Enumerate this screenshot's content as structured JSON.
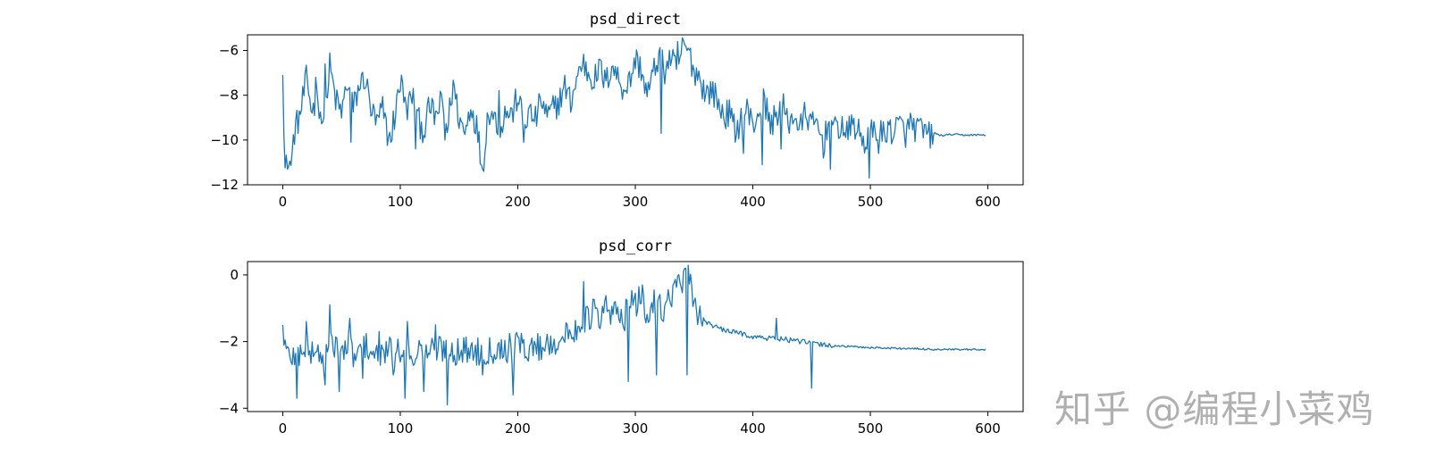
{
  "chart_data": [
    {
      "type": "line",
      "title": "psd_direct",
      "xlim": [
        -30,
        630
      ],
      "ylim": [
        -12,
        -5.3
      ],
      "xticks": [
        0,
        100,
        200,
        300,
        400,
        500,
        600
      ],
      "yticks": [
        -12,
        -10,
        -8,
        -6
      ],
      "grid": false,
      "color": "#1f77b4",
      "anchors": [
        [
          0,
          -7.1
        ],
        [
          2,
          -11.3
        ],
        [
          4,
          -10.4
        ],
        [
          7,
          -11.2
        ],
        [
          10,
          -9.6
        ],
        [
          15,
          -8.8
        ],
        [
          20,
          -7.3
        ],
        [
          25,
          -8.7
        ],
        [
          30,
          -8.1
        ],
        [
          35,
          -9.6
        ],
        [
          40,
          -6.7
        ],
        [
          45,
          -8.2
        ],
        [
          50,
          -8.8
        ],
        [
          55,
          -7.4
        ],
        [
          60,
          -8.6
        ],
        [
          65,
          -7.6
        ],
        [
          70,
          -7.2
        ],
        [
          75,
          -8.6
        ],
        [
          80,
          -9.3
        ],
        [
          85,
          -8.6
        ],
        [
          90,
          -10.0
        ],
        [
          95,
          -9.0
        ],
        [
          100,
          -7.4
        ],
        [
          105,
          -8.7
        ],
        [
          110,
          -8.0
        ],
        [
          115,
          -9.1
        ],
        [
          120,
          -9.6
        ],
        [
          125,
          -8.5
        ],
        [
          130,
          -9.0
        ],
        [
          135,
          -8.3
        ],
        [
          140,
          -9.5
        ],
        [
          145,
          -7.5
        ],
        [
          150,
          -9.0
        ],
        [
          155,
          -9.7
        ],
        [
          160,
          -8.4
        ],
        [
          165,
          -9.4
        ],
        [
          170,
          -11.3
        ],
        [
          175,
          -8.6
        ],
        [
          180,
          -9.0
        ],
        [
          185,
          -9.4
        ],
        [
          190,
          -8.7
        ],
        [
          195,
          -8.9
        ],
        [
          200,
          -8.0
        ],
        [
          205,
          -9.3
        ],
        [
          210,
          -8.8
        ],
        [
          215,
          -9.1
        ],
        [
          220,
          -8.2
        ],
        [
          225,
          -9.0
        ],
        [
          230,
          -8.6
        ],
        [
          235,
          -8.3
        ],
        [
          240,
          -7.6
        ],
        [
          245,
          -8.3
        ],
        [
          250,
          -7.3
        ],
        [
          255,
          -6.5
        ],
        [
          260,
          -7.0
        ],
        [
          265,
          -7.3
        ],
        [
          270,
          -6.8
        ],
        [
          275,
          -7.5
        ],
        [
          280,
          -6.6
        ],
        [
          285,
          -7.2
        ],
        [
          290,
          -7.7
        ],
        [
          295,
          -7.4
        ],
        [
          300,
          -6.4
        ],
        [
          305,
          -6.8
        ],
        [
          310,
          -8.0
        ],
        [
          315,
          -7.1
        ],
        [
          320,
          -6.2
        ],
        [
          325,
          -6.9
        ],
        [
          330,
          -6.3
        ],
        [
          335,
          -6.9
        ],
        [
          340,
          -5.9
        ],
        [
          345,
          -6.0
        ],
        [
          350,
          -6.9
        ],
        [
          355,
          -7.2
        ],
        [
          360,
          -8.0
        ],
        [
          365,
          -7.7
        ],
        [
          370,
          -8.3
        ],
        [
          375,
          -8.9
        ],
        [
          380,
          -8.8
        ],
        [
          385,
          -9.6
        ],
        [
          390,
          -9.1
        ],
        [
          395,
          -8.6
        ],
        [
          400,
          -9.4
        ],
        [
          405,
          -8.7
        ],
        [
          410,
          -8.2
        ],
        [
          415,
          -9.4
        ],
        [
          420,
          -8.8
        ],
        [
          425,
          -8.4
        ],
        [
          430,
          -9.3
        ],
        [
          435,
          -8.8
        ],
        [
          440,
          -9.6
        ],
        [
          445,
          -8.7
        ],
        [
          450,
          -9.4
        ],
        [
          455,
          -9.3
        ],
        [
          460,
          -10.2
        ],
        [
          465,
          -9.1
        ],
        [
          470,
          -9.6
        ],
        [
          475,
          -9.3
        ],
        [
          480,
          -9.8
        ],
        [
          485,
          -9.2
        ],
        [
          490,
          -9.7
        ],
        [
          495,
          -10.1
        ],
        [
          500,
          -9.8
        ],
        [
          505,
          -9.4
        ],
        [
          510,
          -9.8
        ],
        [
          515,
          -9.5
        ],
        [
          520,
          -9.6
        ],
        [
          525,
          -9.3
        ],
        [
          530,
          -9.7
        ],
        [
          535,
          -9.4
        ],
        [
          540,
          -9.5
        ],
        [
          545,
          -9.6
        ],
        [
          550,
          -9.8
        ],
        [
          555,
          -9.7
        ],
        [
          560,
          -9.8
        ],
        [
          570,
          -9.75
        ],
        [
          580,
          -9.78
        ],
        [
          598,
          -9.77
        ]
      ],
      "spikes": [
        [
          4,
          -11.3
        ],
        [
          13,
          -9.7
        ],
        [
          28,
          -7.2
        ],
        [
          36,
          -6.6
        ],
        [
          58,
          -10.1
        ],
        [
          93,
          -10.0
        ],
        [
          101,
          -7.1
        ],
        [
          113,
          -10.4
        ],
        [
          138,
          -10.0
        ],
        [
          170,
          -11.3
        ],
        [
          184,
          -7.8
        ],
        [
          205,
          -10.1
        ],
        [
          322,
          -9.7
        ],
        [
          336,
          -5.6
        ],
        [
          392,
          -10.6
        ],
        [
          408,
          -11.1
        ],
        [
          424,
          -10.4
        ],
        [
          466,
          -11.3
        ],
        [
          499,
          -11.7
        ],
        [
          507,
          -10.6
        ],
        [
          534,
          -8.8
        ]
      ]
    },
    {
      "type": "line",
      "title": "psd_corr",
      "xlim": [
        -30,
        630
      ],
      "ylim": [
        -4.1,
        0.4
      ],
      "xticks": [
        0,
        100,
        200,
        300,
        400,
        500,
        600
      ],
      "yticks": [
        -4,
        -2,
        0
      ],
      "grid": false,
      "color": "#1f77b4",
      "anchors": [
        [
          0,
          -1.5
        ],
        [
          3,
          -2.4
        ],
        [
          8,
          -2.4
        ],
        [
          12,
          -2.5
        ],
        [
          18,
          -2.1
        ],
        [
          22,
          -2.4
        ],
        [
          28,
          -2.2
        ],
        [
          34,
          -2.6
        ],
        [
          40,
          -2.2
        ],
        [
          45,
          -2.0
        ],
        [
          50,
          -2.4
        ],
        [
          56,
          -2.1
        ],
        [
          62,
          -2.5
        ],
        [
          70,
          -2.1
        ],
        [
          76,
          -2.3
        ],
        [
          82,
          -2.6
        ],
        [
          88,
          -2.2
        ],
        [
          96,
          -2.5
        ],
        [
          102,
          -2.1
        ],
        [
          108,
          -2.4
        ],
        [
          114,
          -2.3
        ],
        [
          120,
          -2.2
        ],
        [
          126,
          -2.3
        ],
        [
          132,
          -2.2
        ],
        [
          140,
          -2.2
        ],
        [
          150,
          -2.3
        ],
        [
          160,
          -2.25
        ],
        [
          170,
          -2.3
        ],
        [
          180,
          -2.2
        ],
        [
          190,
          -2.2
        ],
        [
          200,
          -2.15
        ],
        [
          210,
          -2.2
        ],
        [
          220,
          -2.15
        ],
        [
          230,
          -2.0
        ],
        [
          240,
          -1.9
        ],
        [
          250,
          -1.6
        ],
        [
          255,
          -1.2
        ],
        [
          260,
          -1.4
        ],
        [
          265,
          -1.0
        ],
        [
          270,
          -1.5
        ],
        [
          275,
          -0.9
        ],
        [
          280,
          -1.3
        ],
        [
          285,
          -0.9
        ],
        [
          290,
          -1.4
        ],
        [
          295,
          -0.7
        ],
        [
          300,
          -1.0
        ],
        [
          305,
          -0.6
        ],
        [
          310,
          -1.3
        ],
        [
          315,
          -0.9
        ],
        [
          320,
          -0.7
        ],
        [
          325,
          -1.1
        ],
        [
          330,
          -0.6
        ],
        [
          335,
          -0.3
        ],
        [
          340,
          -0.2
        ],
        [
          345,
          -0.1
        ],
        [
          350,
          -0.9
        ],
        [
          355,
          -1.2
        ],
        [
          360,
          -1.4
        ],
        [
          370,
          -1.6
        ],
        [
          380,
          -1.7
        ],
        [
          390,
          -1.75
        ],
        [
          400,
          -1.85
        ],
        [
          410,
          -1.9
        ],
        [
          420,
          -1.9
        ],
        [
          430,
          -1.95
        ],
        [
          440,
          -2.0
        ],
        [
          450,
          -2.05
        ],
        [
          460,
          -2.1
        ],
        [
          470,
          -2.12
        ],
        [
          480,
          -2.15
        ],
        [
          500,
          -2.18
        ],
        [
          520,
          -2.2
        ],
        [
          540,
          -2.22
        ],
        [
          560,
          -2.24
        ],
        [
          598,
          -2.25
        ]
      ],
      "spikes": [
        [
          12,
          -3.7
        ],
        [
          20,
          -1.4
        ],
        [
          36,
          -3.3
        ],
        [
          40,
          -0.9
        ],
        [
          48,
          -3.5
        ],
        [
          57,
          -1.3
        ],
        [
          68,
          -3.1
        ],
        [
          82,
          -1.7
        ],
        [
          94,
          -3.0
        ],
        [
          104,
          -3.7
        ],
        [
          106,
          -1.4
        ],
        [
          120,
          -3.5
        ],
        [
          130,
          -1.5
        ],
        [
          140,
          -3.9
        ],
        [
          170,
          -3.0
        ],
        [
          196,
          -3.6
        ],
        [
          198,
          -1.8
        ],
        [
          256,
          -0.2
        ],
        [
          294,
          -3.2
        ],
        [
          306,
          -0.3
        ],
        [
          318,
          -3.0
        ],
        [
          342,
          0.2
        ],
        [
          344,
          -3.0
        ],
        [
          420,
          -1.3
        ],
        [
          450,
          -3.4
        ]
      ]
    }
  ],
  "watermark": {
    "text": "知乎 @编程小菜鸡"
  }
}
